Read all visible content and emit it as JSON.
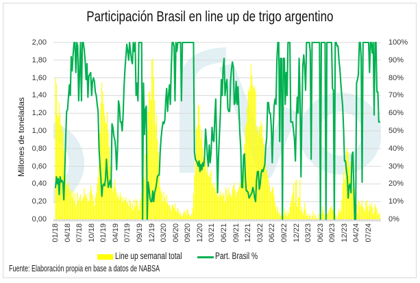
{
  "chart_data": {
    "type": "bar",
    "title": "Participación Brasil en line up de trigo argentino",
    "xlabel": "",
    "frequency": "weekly",
    "x_tick_every_n_points": 13,
    "x_tick_labels": [
      "01/18",
      "04/18",
      "07/18",
      "10/18",
      "01/19",
      "04/19",
      "07/19",
      "09/19",
      "12/19",
      "03/20",
      "06/20",
      "09/20",
      "12/20",
      "03/21",
      "06/21",
      "09/21",
      "12/21",
      "03/22",
      "06/22",
      "09/22",
      "12/22",
      "03/23",
      "06/23",
      "09/23",
      "12/23",
      "04/24",
      "07/24"
    ],
    "y_left": {
      "label": "Millones de toneladas",
      "range": [
        0,
        2
      ],
      "ticks": [
        "0,00",
        "0,20",
        "0,40",
        "0,60",
        "0,80",
        "1,00",
        "1,20",
        "1,40",
        "1,60",
        "1,80",
        "2,00"
      ]
    },
    "y_right": {
      "label": "",
      "range": [
        0,
        100
      ],
      "ticks": [
        "0%",
        "10%",
        "20%",
        "30%",
        "40%",
        "50%",
        "60%",
        "70%",
        "80%",
        "90%",
        "100%"
      ]
    },
    "grid": true,
    "legend": {
      "position": "bottom"
    },
    "source": "Fuente: Elaboración propia en base a datos de NABSA",
    "series": [
      {
        "name": "Line up semanal total",
        "type": "bar",
        "axis": "left",
        "unit": "Mt",
        "color": "#FFFF00",
        "values": [
          1.6,
          1.53,
          1.18,
          1.15,
          1.33,
          1.2,
          1.07,
          1.05,
          0.99,
          0.79,
          0.62,
          0.5,
          0.4,
          0.38,
          0.42,
          0.35,
          0.3,
          0.33,
          0.25,
          0.32,
          0.2,
          0.29,
          0.14,
          0.18,
          0.3,
          0.22,
          0.25,
          0.28,
          0.2,
          0.22,
          0.25,
          0.35,
          0.27,
          0.29,
          0.24,
          0.2,
          0.21,
          0.3,
          0.38,
          0.33,
          0.28,
          0.2,
          0.15,
          0.25,
          0.3,
          0.4,
          0.48,
          0.62,
          0.98,
          1.32,
          1.55,
          1.45,
          1.3,
          1.18,
          1.1,
          1.08,
          1.22,
          0.98,
          0.82,
          0.6,
          0.55,
          0.42,
          0.32,
          0.38,
          0.45,
          0.35,
          0.3,
          0.25,
          0.28,
          0.22,
          0.3,
          0.25,
          0.19,
          0.25,
          0.21,
          0.22,
          0.25,
          0.2,
          0.18,
          0.15,
          0.23,
          0.2,
          0.13,
          0.18,
          0.1,
          0.22,
          0.14,
          0.23,
          0.21,
          0.15,
          0.1,
          0.18,
          0.23,
          0.3,
          0.35,
          0.48,
          0.45,
          0.74,
          0.4,
          1.0,
          1.22,
          1.43,
          1.45,
          1.35,
          1.8,
          1.82,
          1.61,
          1.35,
          1.07,
          1.18,
          0.9,
          0.76,
          0.6,
          0.37,
          0.32,
          0.28,
          0.2,
          0.31,
          0.25,
          0.2,
          0.28,
          0.18,
          0.16,
          0.16,
          0.13,
          0.1,
          0.16,
          0.16,
          0.13,
          0.18,
          0.1,
          0.08,
          0.13,
          0.1,
          0.06,
          0.08,
          0.04,
          0.03,
          0.07,
          0.1,
          0.08,
          0.05,
          0.12,
          0.1,
          0.06,
          0.04,
          0.03,
          0.06,
          0.12,
          0.29,
          0.5,
          0.74,
          1.02,
          1.05,
          1.3,
          1.28,
          1.07,
          0.91,
          1.0,
          0.8,
          0.64,
          0.66,
          0.69,
          0.53,
          0.61,
          0.5,
          0.48,
          0.52,
          0.56,
          0.4,
          0.37,
          0.42,
          0.35,
          0.3,
          0.4,
          0.27,
          0.25,
          0.28,
          0.32,
          0.27,
          0.25,
          0.3,
          0.28,
          0.19,
          0.36,
          0.33,
          0.26,
          0.36,
          0.3,
          0.28,
          0.25,
          0.34,
          0.38,
          0.41,
          0.33,
          0.26,
          0.31,
          0.33,
          0.36,
          0.42,
          0.4,
          0.45,
          0.55,
          0.7,
          0.85,
          1.05,
          1.09,
          1.27,
          1.47,
          1.45,
          1.5,
          1.76,
          1.63,
          1.52,
          1.48,
          1.5,
          1.45,
          1.0,
          1.05,
          0.95,
          1.05,
          1.05,
          1.11,
          1.07,
          0.92,
          0.85,
          0.75,
          0.62,
          0.55,
          0.5,
          0.45,
          0.38,
          0.31,
          0.32,
          0.37,
          0.35,
          0.27,
          0.19,
          0.14,
          0.09,
          0.14,
          0.06,
          0.09,
          0.04,
          0.06,
          0.12,
          0.04,
          0.12,
          0.06,
          0.09,
          0.04,
          0.09,
          0.06,
          0.14,
          0.19,
          0.25,
          0.3,
          0.4,
          0.19,
          0.43,
          0.45,
          0.14,
          0.25,
          0.25,
          0.45,
          0.09,
          0.14,
          0.06,
          0.09,
          0.19,
          0.12,
          0.04,
          0.06,
          0.01,
          0.04,
          0.06,
          0.01,
          0.04,
          0.09,
          0.01,
          0.06,
          0.04,
          0.01,
          0.01,
          0.06,
          0.01,
          0.04,
          0.06,
          0.14,
          0.09,
          0.06,
          0.01,
          0.04,
          0.06,
          0.06,
          0.09,
          0.12,
          0.14,
          0.14,
          0.12,
          0.09,
          0.12,
          0.06,
          0.04,
          0.01,
          0.06,
          0.12,
          0.09,
          0.09,
          0.22,
          0.4,
          0.53,
          0.45,
          0.6,
          0.76,
          0.81,
          0.76,
          0.6,
          0.65,
          0.5,
          0.45,
          0.35,
          0.3,
          0.25,
          0.19,
          0.17,
          0.06,
          0.22,
          0.19,
          0.14,
          0.17,
          0.22,
          0.14,
          0.12,
          0.09,
          0.19,
          0.22,
          0.14,
          0.09,
          0.17,
          0.14,
          0.19,
          0.14,
          0.06,
          0.09,
          0.17,
          0.14,
          0.12,
          0.06,
          0.05,
          0.08
        ]
      },
      {
        "name": "Part. Brasil %",
        "type": "line",
        "axis": "right",
        "unit": "%",
        "color": "#00B050",
        "values": [
          18,
          24,
          20,
          23,
          14,
          24,
          21,
          22,
          21,
          11,
          27,
          45,
          61,
          62,
          69,
          76,
          70,
          92,
          84,
          93,
          100,
          100,
          83,
          100,
          98,
          67,
          83,
          100,
          67,
          100,
          100,
          96,
          90,
          79,
          88,
          69,
          81,
          82,
          83,
          70,
          78,
          80,
          78,
          72,
          70,
          65,
          61,
          40,
          31,
          23,
          13,
          19,
          20,
          19,
          23,
          34,
          25,
          18,
          20,
          22,
          18,
          54,
          52,
          47,
          45,
          40,
          28,
          40,
          67,
          64,
          55,
          55,
          50,
          59,
          75,
          85,
          92,
          99,
          95,
          90,
          100,
          95,
          90,
          88,
          100,
          95,
          100,
          70,
          77,
          67,
          100,
          100,
          100,
          100,
          0,
          77,
          48,
          62,
          64,
          0,
          21,
          17,
          12,
          10,
          10,
          16,
          10,
          15,
          17,
          20,
          24,
          25,
          25,
          38,
          46,
          51,
          55,
          54,
          56,
          67,
          74,
          61,
          70,
          76,
          65,
          86,
          100,
          100,
          98,
          67,
          100,
          95,
          100,
          100,
          100,
          100,
          67,
          100,
          100,
          100,
          100,
          100,
          100,
          100,
          100,
          100,
          100,
          100,
          100,
          100,
          38,
          34,
          33,
          32,
          30,
          33,
          27,
          31,
          28,
          32,
          30,
          36,
          51,
          44,
          35,
          30,
          42,
          32,
          38,
          52,
          45,
          44,
          58,
          68,
          40,
          15,
          36,
          48,
          60,
          79,
          70,
          86,
          91,
          70,
          76,
          79,
          63,
          61,
          61,
          78,
          85,
          89,
          86,
          65,
          66,
          78,
          65,
          75,
          62,
          49,
          40,
          18,
          18,
          36,
          37,
          23,
          16,
          16,
          15,
          12,
          13,
          14,
          15,
          18,
          16,
          12,
          10,
          22,
          27,
          27,
          17,
          20,
          26,
          28,
          27,
          29,
          31,
          41,
          46,
          66,
          66,
          60,
          60,
          52,
          32,
          50,
          64,
          68,
          65,
          90,
          100,
          100,
          44,
          91,
          91,
          0,
          91,
          91,
          65,
          83,
          70,
          100,
          100,
          100,
          55,
          55,
          55,
          50,
          45,
          33,
          57,
          69,
          60,
          91,
          68,
          24,
          60,
          87,
          93,
          86,
          73,
          100,
          100,
          100,
          100,
          95,
          34,
          100,
          100,
          100,
          100,
          100,
          100,
          100,
          100,
          100,
          0,
          100,
          100,
          100,
          100,
          100,
          0,
          100,
          100,
          100,
          100,
          100,
          100,
          74,
          73,
          0,
          100,
          100,
          98,
          98,
          90,
          85,
          77,
          70,
          64,
          51,
          33,
          33,
          28,
          24,
          12,
          19,
          20,
          15,
          36,
          38,
          19,
          0,
          0,
          77,
          79,
          82,
          100,
          100,
          91,
          21,
          100,
          100,
          100,
          100,
          100,
          100,
          100,
          83,
          100,
          100,
          94,
          100,
          59,
          100,
          100,
          72,
          72,
          55,
          55
        ]
      }
    ]
  }
}
